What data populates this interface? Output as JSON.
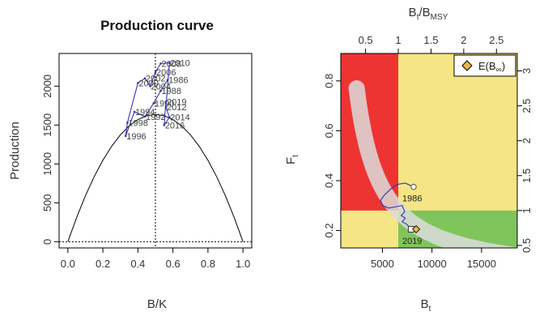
{
  "chart_data": [
    {
      "type": "line",
      "title": "Production curve",
      "xlabel": "B/K",
      "ylabel": "Production",
      "xlim": [
        -0.05,
        1.05
      ],
      "ylim": [
        -80,
        2420
      ],
      "x_ticks": [
        "0.0",
        "0.2",
        "0.4",
        "0.6",
        "0.8",
        "1.0"
      ],
      "y_ticks": [
        "0",
        "500",
        "1000",
        "1500",
        "2000"
      ],
      "grid": false,
      "reference_lines": {
        "vertical_x": 0.5,
        "horizontal_y": 0
      },
      "series": [
        {
          "values": [
            {
              "x": 0.0,
              "y": 0
            },
            {
              "x": 0.05,
              "y": 310
            },
            {
              "x": 0.1,
              "y": 589
            },
            {
              "x": 0.15,
              "y": 835
            },
            {
              "x": 0.2,
              "y": 1047
            },
            {
              "x": 0.25,
              "y": 1227
            },
            {
              "x": 0.3,
              "y": 1374
            },
            {
              "x": 0.35,
              "y": 1489
            },
            {
              "x": 0.4,
              "y": 1570
            },
            {
              "x": 0.45,
              "y": 1619
            },
            {
              "x": 0.5,
              "y": 1636
            },
            {
              "x": 0.55,
              "y": 1619
            },
            {
              "x": 0.6,
              "y": 1570
            },
            {
              "x": 0.65,
              "y": 1489
            },
            {
              "x": 0.7,
              "y": 1374
            },
            {
              "x": 0.75,
              "y": 1227
            },
            {
              "x": 0.8,
              "y": 1047
            },
            {
              "x": 0.85,
              "y": 835
            },
            {
              "x": 0.9,
              "y": 589
            },
            {
              "x": 0.95,
              "y": 310
            },
            {
              "x": 1.0,
              "y": 0
            }
          ]
        },
        {
          "values": [
            {
              "x": 0.57,
              "y": 2080,
              "label": "1986"
            },
            {
              "x": 0.53,
              "y": 1940,
              "label": "1988"
            },
            {
              "x": 0.49,
              "y": 1780,
              "label": "1990"
            },
            {
              "x": 0.44,
              "y": 1610,
              "label": "1992"
            },
            {
              "x": 0.38,
              "y": 1670,
              "label": "1994"
            },
            {
              "x": 0.33,
              "y": 1360,
              "label": "1996"
            },
            {
              "x": 0.34,
              "y": 1530,
              "label": "1998"
            },
            {
              "x": 0.4,
              "y": 2040,
              "label": "2000"
            },
            {
              "x": 0.44,
              "y": 2100,
              "label": "2002"
            },
            {
              "x": 0.47,
              "y": 2000,
              "label": "2004"
            },
            {
              "x": 0.5,
              "y": 2180,
              "label": "2006"
            },
            {
              "x": 0.53,
              "y": 2290,
              "label": "2008"
            },
            {
              "x": 0.58,
              "y": 2300,
              "label": "2010"
            },
            {
              "x": 0.56,
              "y": 1730,
              "label": "2012"
            },
            {
              "x": 0.58,
              "y": 1600,
              "label": "2014"
            },
            {
              "x": 0.55,
              "y": 1500,
              "label": "2016"
            },
            {
              "x": 0.56,
              "y": 1800,
              "label": "2019"
            }
          ]
        }
      ]
    },
    {
      "type": "scatter",
      "xlabel": "B",
      "xlabel_sub": "t",
      "ylabel": "F",
      "ylabel_sub": "t",
      "top_xlabel": "B",
      "top_xlabel_sub1": "t",
      "top_xlabel_mid": "/B",
      "top_xlabel_sub2": "MSY",
      "xlim": [
        800,
        18600
      ],
      "ylim": [
        0.13,
        0.91
      ],
      "x_ticks": [
        5000,
        10000,
        15000
      ],
      "x_tick_labels": [
        "5000",
        "10000",
        "15000"
      ],
      "y_ticks": [
        0.2,
        0.4,
        0.6,
        0.8
      ],
      "y_tick_labels": [
        "0.2",
        "0.4",
        "0.6",
        "0.8"
      ],
      "top_ticks": [
        0.5,
        1.0,
        1.5,
        2.0,
        2.5
      ],
      "top_tick_labels": [
        "0.5",
        "1",
        "1.5",
        "2",
        "2.5"
      ],
      "right_ticks": [
        0.5,
        1.0,
        1.5,
        2.0,
        2.5,
        3.0
      ],
      "right_tick_labels": [
        "0.5",
        "1",
        "1.5",
        "2",
        "2.5",
        "3"
      ],
      "b_msy": 6600,
      "f_msy": 0.28,
      "zone_colors": {
        "overfished_overfishing": "#ee3333",
        "caution": "#f5e584",
        "healthy": "#7fc55c",
        "band": "#dcdcdc"
      },
      "grid": false,
      "trajectory_color": "#3333aa",
      "trajectory": [
        {
          "x": 8150,
          "y": 0.375,
          "label": "1986"
        },
        {
          "x": 7300,
          "y": 0.39
        },
        {
          "x": 6500,
          "y": 0.385
        },
        {
          "x": 5800,
          "y": 0.365
        },
        {
          "x": 5150,
          "y": 0.34
        },
        {
          "x": 4800,
          "y": 0.32
        },
        {
          "x": 5050,
          "y": 0.3
        },
        {
          "x": 5600,
          "y": 0.29
        },
        {
          "x": 6300,
          "y": 0.295
        },
        {
          "x": 7000,
          "y": 0.3
        },
        {
          "x": 7250,
          "y": 0.275
        },
        {
          "x": 6900,
          "y": 0.26
        },
        {
          "x": 7300,
          "y": 0.25
        },
        {
          "x": 7000,
          "y": 0.235
        },
        {
          "x": 7450,
          "y": 0.225
        },
        {
          "x": 7900,
          "y": 0.205,
          "label": "2019"
        }
      ],
      "expected_point": {
        "x": 8400,
        "y": 0.205
      },
      "legend": {
        "label": "E(B",
        "sub": "∞",
        "close": ")",
        "position": "top-right",
        "marker_color": "#e8b64a"
      }
    }
  ]
}
